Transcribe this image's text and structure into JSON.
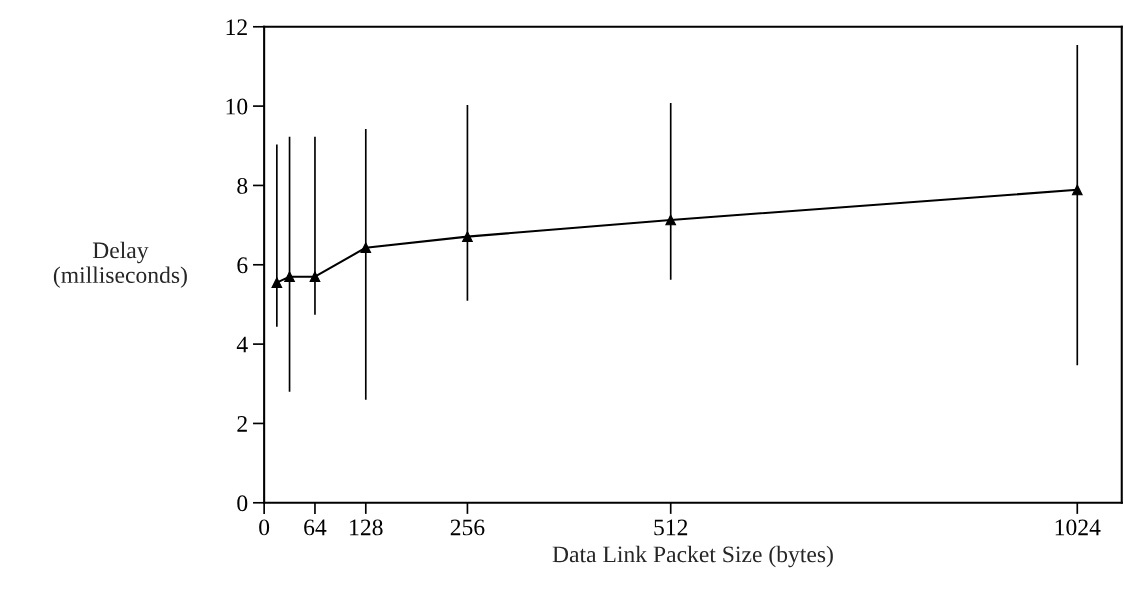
{
  "chart_data": {
    "type": "line",
    "xlabel": "Data Link Packet Size (bytes)",
    "ylabel": "Delay\n(milliseconds)",
    "x": [
      16,
      32,
      64,
      128,
      256,
      512,
      1024
    ],
    "series": [
      {
        "color": "#000000",
        "values": [
          5.55,
          5.7,
          5.7,
          6.43,
          6.71,
          7.13,
          7.89
        ],
        "errors": [
          [
            4.44,
            9.03
          ],
          [
            2.8,
            9.23
          ],
          [
            4.74,
            9.23
          ],
          [
            2.6,
            9.42
          ],
          [
            5.09,
            10.03
          ],
          [
            5.62,
            10.08
          ],
          [
            3.47,
            11.54
          ]
        ]
      }
    ],
    "xlim": [
      0,
      1080
    ],
    "xticks": [
      0,
      64,
      128,
      256,
      512,
      1024
    ],
    "ylim": [
      0,
      12
    ],
    "yticks": [
      0,
      2,
      4,
      6,
      8,
      10,
      12
    ],
    "marker": "triangle",
    "line_style": "solid",
    "grid": false
  }
}
